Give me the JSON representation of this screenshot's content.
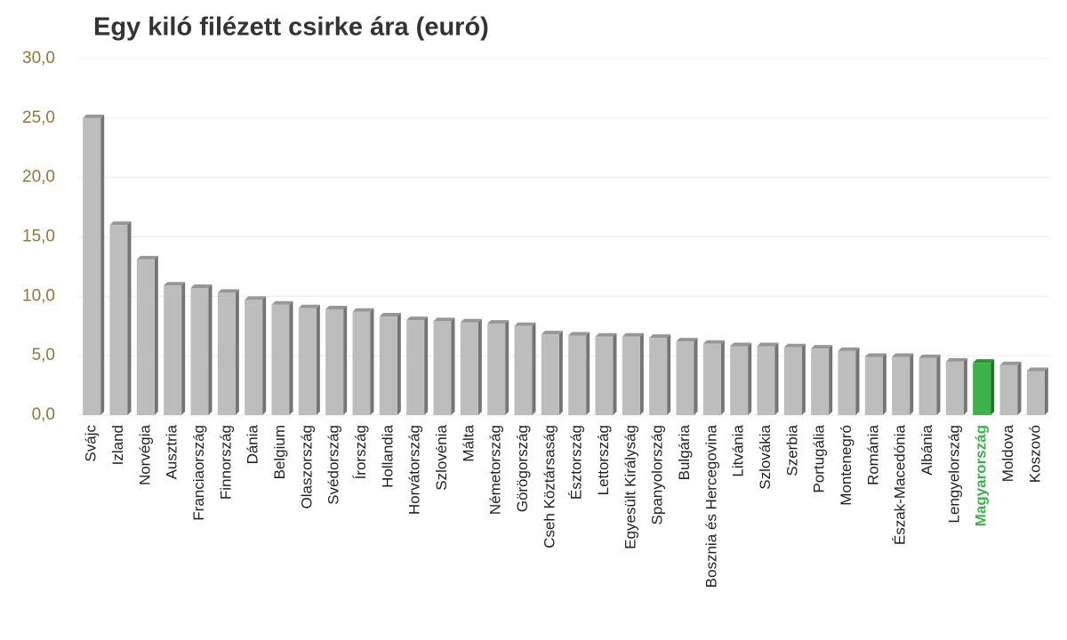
{
  "chart_data": {
    "type": "bar",
    "title": "Egy kiló filézett csirke ára (euró)",
    "categories": [
      "Svájc",
      "Izland",
      "Norvégia",
      "Ausztria",
      "Franciaország",
      "Finnország",
      "Dánia",
      "Belgium",
      "Olaszország",
      "Svédország",
      "Írország",
      "Hollandia",
      "Horvátország",
      "Szlovénia",
      "Málta",
      "Németország",
      "Görögország",
      "Cseh Köztársaság",
      "Észtország",
      "Lettország",
      "Egyesült Királyság",
      "Spanyolország",
      "Bulgária",
      "Bosznia és Hercegovina",
      "Litvánia",
      "Szlovákia",
      "Szerbia",
      "Portugália",
      "Montenegró",
      "Románia",
      "Észak-Macedónia",
      "Albánia",
      "Lengyelország",
      "Magyarország",
      "Moldova",
      "Koszovó"
    ],
    "values": [
      25.0,
      16.0,
      13.1,
      10.9,
      10.7,
      10.3,
      9.7,
      9.3,
      9.0,
      8.9,
      8.7,
      8.3,
      8.0,
      7.9,
      7.8,
      7.7,
      7.5,
      6.8,
      6.7,
      6.6,
      6.6,
      6.5,
      6.2,
      6.0,
      5.8,
      5.8,
      5.7,
      5.6,
      5.4,
      4.9,
      4.9,
      4.8,
      4.5,
      4.4,
      4.2,
      3.7
    ],
    "color": "#bdbdbd",
    "colors": [
      "#bdbdbd",
      "#bdbdbd",
      "#bdbdbd",
      "#bdbdbd",
      "#bdbdbd",
      "#bdbdbd",
      "#bdbdbd",
      "#bdbdbd",
      "#bdbdbd",
      "#bdbdbd",
      "#bdbdbd",
      "#bdbdbd",
      "#bdbdbd",
      "#bdbdbd",
      "#bdbdbd",
      "#bdbdbd",
      "#bdbdbd",
      "#bdbdbd",
      "#bdbdbd",
      "#bdbdbd",
      "#bdbdbd",
      "#bdbdbd",
      "#bdbdbd",
      "#bdbdbd",
      "#bdbdbd",
      "#bdbdbd",
      "#bdbdbd",
      "#bdbdbd",
      "#bdbdbd",
      "#bdbdbd",
      "#bdbdbd",
      "#bdbdbd",
      "#bdbdbd",
      "#3cb34a",
      "#bdbdbd",
      "#bdbdbd"
    ],
    "ylim": [
      0,
      30
    ],
    "yticks": [
      {
        "value": 0,
        "label": "0,0"
      },
      {
        "value": 5,
        "label": "5,0"
      },
      {
        "value": 10,
        "label": "10,0"
      },
      {
        "value": 15,
        "label": "15,0"
      },
      {
        "value": 20,
        "label": "20,0"
      },
      {
        "value": 25,
        "label": "25,0"
      },
      {
        "value": 30,
        "label": "30,0"
      }
    ],
    "grid": true
  }
}
